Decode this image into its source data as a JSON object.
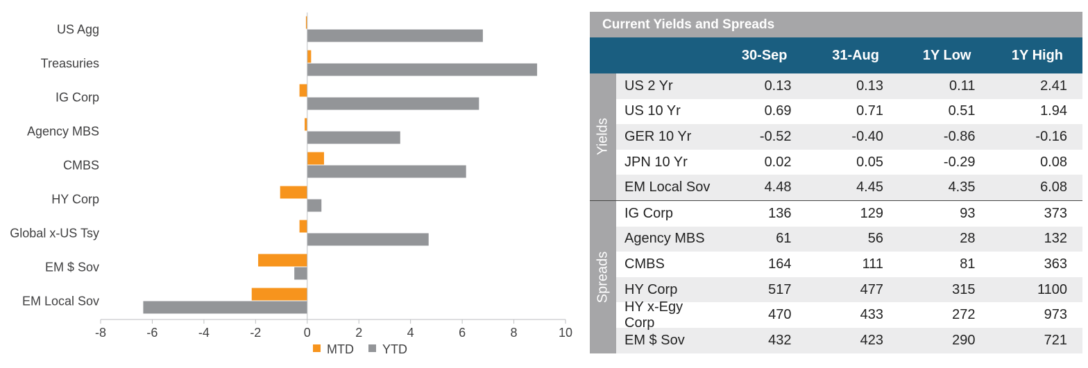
{
  "chart_data": {
    "type": "bar",
    "orientation": "horizontal",
    "categories": [
      "US Agg",
      "Treasuries",
      "IG Corp",
      "Agency MBS",
      "CMBS",
      "HY Corp",
      "Global x-US Tsy",
      "EM $ Sov",
      "EM Local Sov"
    ],
    "series": [
      {
        "name": "MTD",
        "color": "#f7941d",
        "values": [
          -0.05,
          0.15,
          -0.3,
          -0.1,
          0.65,
          -1.05,
          -0.3,
          -1.9,
          -2.15
        ]
      },
      {
        "name": "YTD",
        "color": "#939598",
        "values": [
          6.8,
          8.9,
          6.65,
          3.6,
          6.15,
          0.55,
          4.7,
          -0.5,
          -6.35
        ]
      }
    ],
    "xlim": [
      -8,
      10
    ],
    "xticks": [
      -8,
      -6,
      -4,
      -2,
      0,
      2,
      4,
      6,
      8,
      10
    ],
    "title": "",
    "xlabel": "",
    "ylabel": "",
    "legend": [
      "MTD",
      "YTD"
    ],
    "legend_position": "bottom"
  },
  "table": {
    "title": "Current Yields and Spreads",
    "headers": [
      "30-Sep",
      "31-Aug",
      "1Y Low",
      "1Y High"
    ],
    "groups": [
      {
        "label": "Yields",
        "rows": [
          {
            "name": "US 2 Yr",
            "values": [
              "0.13",
              "0.13",
              "0.11",
              "2.41"
            ]
          },
          {
            "name": "US 10 Yr",
            "values": [
              "0.69",
              "0.71",
              "0.51",
              "1.94"
            ]
          },
          {
            "name": "GER 10 Yr",
            "values": [
              "-0.52",
              "-0.40",
              "-0.86",
              "-0.16"
            ]
          },
          {
            "name": "JPN 10 Yr",
            "values": [
              "0.02",
              "0.05",
              "-0.29",
              "0.08"
            ]
          },
          {
            "name": "EM Local Sov",
            "values": [
              "4.48",
              "4.45",
              "4.35",
              "6.08"
            ]
          }
        ]
      },
      {
        "label": "Spreads",
        "rows": [
          {
            "name": "IG Corp",
            "values": [
              "136",
              "129",
              "93",
              "373"
            ]
          },
          {
            "name": "Agency MBS",
            "values": [
              "61",
              "56",
              "28",
              "132"
            ]
          },
          {
            "name": "CMBS",
            "values": [
              "164",
              "111",
              "81",
              "363"
            ]
          },
          {
            "name": "HY Corp",
            "values": [
              "517",
              "477",
              "315",
              "1100"
            ]
          },
          {
            "name": "HY x-Egy Corp",
            "values": [
              "470",
              "433",
              "272",
              "973"
            ]
          },
          {
            "name": "EM $ Sov",
            "values": [
              "432",
              "423",
              "290",
              "721"
            ]
          }
        ]
      }
    ]
  }
}
